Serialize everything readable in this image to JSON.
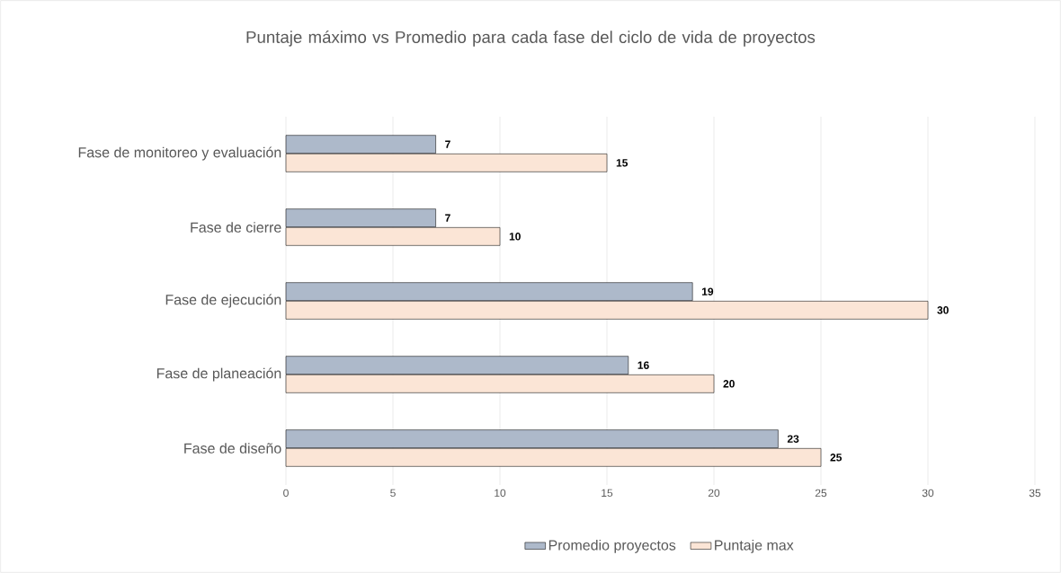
{
  "chart_data": {
    "type": "bar",
    "orientation": "horizontal",
    "title": "Puntaje máximo vs Promedio para cada fase del ciclo de vida de proyectos",
    "categories": [
      "Fase de monitoreo y evaluación",
      "Fase de cierre",
      "Fase de ejecución",
      "Fase de planeación",
      "Fase de diseño"
    ],
    "series": [
      {
        "name": "Promedio proyectos",
        "color": "#adb9ca",
        "values": [
          7,
          7,
          19,
          16,
          23
        ]
      },
      {
        "name": "Puntaje max",
        "color": "#fbe5d6",
        "values": [
          15,
          10,
          30,
          20,
          25
        ]
      }
    ],
    "xlim": [
      0,
      35
    ],
    "xticks": [
      0,
      5,
      10,
      15,
      20,
      25,
      30,
      35
    ],
    "grid": "x",
    "legend": "bottom",
    "data_labels": true
  }
}
